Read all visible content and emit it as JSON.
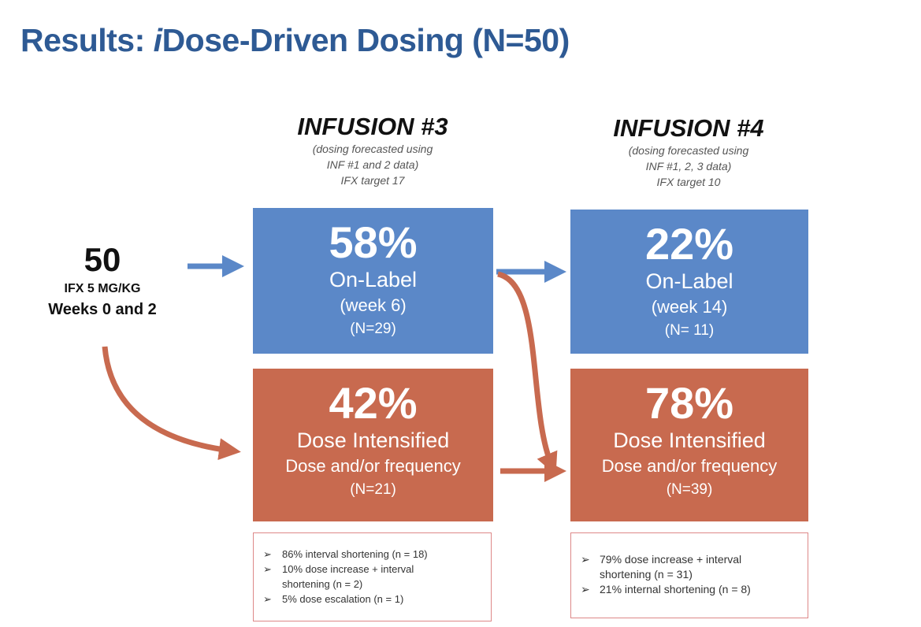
{
  "title": "Results: iDose-Driven Dosing (N=50)",
  "title_parts": {
    "pre": "Results: ",
    "italic": "i",
    "post": "Dose-Driven Dosing (N=50)"
  },
  "start": {
    "count": "50",
    "line1": "IFX 5 MG/KG",
    "line2": "Weeks 0 and 2"
  },
  "infusions": [
    {
      "heading": "INFUSION #3",
      "sub1": "(dosing forecasted using",
      "sub2": "INF #1 and 2 data)",
      "sub3": "IFX target 17",
      "on_label": {
        "pct": "58%",
        "label": "On-Label",
        "week": "(week 6)",
        "n": "(N=29)"
      },
      "intensified": {
        "pct": "42%",
        "label": "Dose Intensified",
        "detail": "Dose and/or frequency",
        "n": "(N=21)"
      },
      "notes": [
        "86% interval shortening (n = 18)",
        "10% dose increase + interval shortening (n = 2)",
        "5% dose escalation (n = 1)"
      ]
    },
    {
      "heading": "INFUSION #4",
      "sub1": "(dosing forecasted using",
      "sub2": "INF #1, 2, 3 data)",
      "sub3": "IFX target 10",
      "on_label": {
        "pct": "22%",
        "label": "On-Label",
        "week": "(week 14)",
        "n": "(N= 11)"
      },
      "intensified": {
        "pct": "78%",
        "label": "Dose Intensified",
        "detail": "Dose and/or frequency",
        "n": "(N=39)"
      },
      "notes": [
        "79% dose increase + interval shortening  (n = 31)",
        "21% internal shortening (n = 8)"
      ]
    }
  ],
  "bullet": "➢",
  "colors": {
    "title": "#2e5a94",
    "blue": "#5b88c8",
    "orange": "#c86a4f"
  }
}
